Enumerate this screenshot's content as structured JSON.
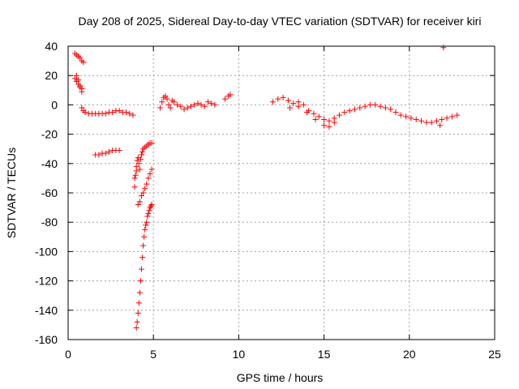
{
  "chart_data": {
    "type": "scatter",
    "title": "Day 208 of 2025, Sidereal Day-to-day VTEC variation (SDTVAR) for receiver kiri",
    "xlabel": "GPS time / hours",
    "ylabel": "SDTVAR / TECUs",
    "xlim": [
      0,
      25
    ],
    "ylim": [
      -160,
      40
    ],
    "x_ticks": [
      0,
      5,
      10,
      15,
      20,
      25
    ],
    "y_ticks": [
      -160,
      -140,
      -120,
      -100,
      -80,
      -60,
      -40,
      -20,
      0,
      20,
      40
    ],
    "grid": true,
    "marker": "plus",
    "color": "#ff0000",
    "series": [
      {
        "x": [
          0.4,
          0.5,
          0.6,
          0.7,
          0.8,
          0.9,
          0.4,
          0.5,
          0.6,
          0.7,
          0.8,
          0.5,
          0.6,
          0.7,
          0.8,
          0.8,
          0.9,
          1.0,
          1.2,
          1.4,
          1.6,
          1.8,
          2.0,
          2.2,
          2.4,
          2.6,
          2.8,
          3.0,
          3.2,
          3.4,
          3.6,
          3.8,
          1.6,
          1.8,
          2.0,
          2.2,
          2.4,
          2.6,
          2.8,
          3.0,
          3.9,
          3.9,
          3.95,
          4.0,
          4.0,
          4.05,
          4.1,
          4.15,
          4.2,
          4.25,
          4.3,
          4.35,
          4.4,
          4.5,
          4.6,
          4.7,
          4.8,
          4.9,
          4.1,
          4.2,
          4.3,
          4.4,
          4.5,
          4.6,
          4.7,
          4.8,
          4.9,
          4.0,
          4.05,
          4.1,
          4.15,
          4.2,
          4.25,
          4.3,
          4.35,
          4.4,
          4.45,
          4.5,
          4.55,
          4.6,
          4.65,
          4.7,
          4.75,
          4.8,
          4.85,
          4.9,
          5.4,
          5.5,
          5.6,
          5.7,
          5.8,
          5.9,
          6.0,
          6.1,
          6.2,
          6.4,
          6.6,
          6.8,
          7.0,
          7.2,
          7.4,
          7.6,
          7.8,
          8.0,
          8.2,
          8.4,
          8.6,
          9.2,
          9.4,
          9.5,
          12.0,
          12.3,
          12.6,
          12.9,
          13.2,
          13.5,
          13.8,
          14.1,
          14.4,
          14.7,
          15.0,
          15.3,
          15.6,
          15.9,
          16.2,
          16.5,
          16.8,
          17.1,
          17.4,
          17.7,
          18.0,
          18.3,
          18.6,
          18.9,
          19.2,
          19.5,
          19.8,
          20.1,
          20.4,
          20.7,
          21.0,
          21.3,
          21.6,
          21.9,
          22.2,
          22.5,
          22.8,
          13.0,
          13.5,
          14.0,
          14.5,
          15.0,
          15.3,
          15.6,
          21.8,
          22.0
        ],
        "y": [
          35,
          34,
          33,
          32,
          30,
          29,
          18,
          16,
          14,
          12,
          9,
          20,
          17,
          13,
          11,
          -2,
          -4,
          -5,
          -6,
          -6,
          -6,
          -6,
          -6,
          -6,
          -5,
          -5,
          -4,
          -4,
          -5,
          -5,
          -6,
          -7,
          -34,
          -34,
          -33,
          -33,
          -32,
          -31,
          -31,
          -31,
          -50,
          -56,
          -48,
          -45,
          -42,
          -38,
          -36,
          -40,
          -44,
          -37,
          -34,
          -32,
          -30,
          -29,
          -28,
          -27,
          -26,
          -26,
          -68,
          -66,
          -62,
          -60,
          -57,
          -54,
          -50,
          -47,
          -44,
          -152,
          -148,
          -142,
          -135,
          -128,
          -120,
          -112,
          -104,
          -96,
          -90,
          -85,
          -82,
          -80,
          -76,
          -74,
          -72,
          -70,
          -69,
          -68,
          -2,
          2,
          5,
          6,
          4,
          0,
          -2,
          3,
          2,
          0,
          -1,
          -3,
          -2,
          -1,
          0,
          1,
          0,
          -1,
          2,
          1,
          0,
          4,
          6,
          7,
          2,
          4,
          5,
          3,
          1,
          2,
          0,
          -4,
          -6,
          -8,
          -10,
          -11,
          -9,
          -7,
          -5,
          -4,
          -3,
          -2,
          -1,
          0,
          0,
          -1,
          -2,
          -3,
          -5,
          -7,
          -8,
          -9,
          -10,
          -11,
          -12,
          -12,
          -11,
          -10,
          -9,
          -8,
          -7,
          -2,
          -1,
          -5,
          -10,
          -14,
          -15,
          -12,
          -14,
          39
        ]
      }
    ]
  }
}
